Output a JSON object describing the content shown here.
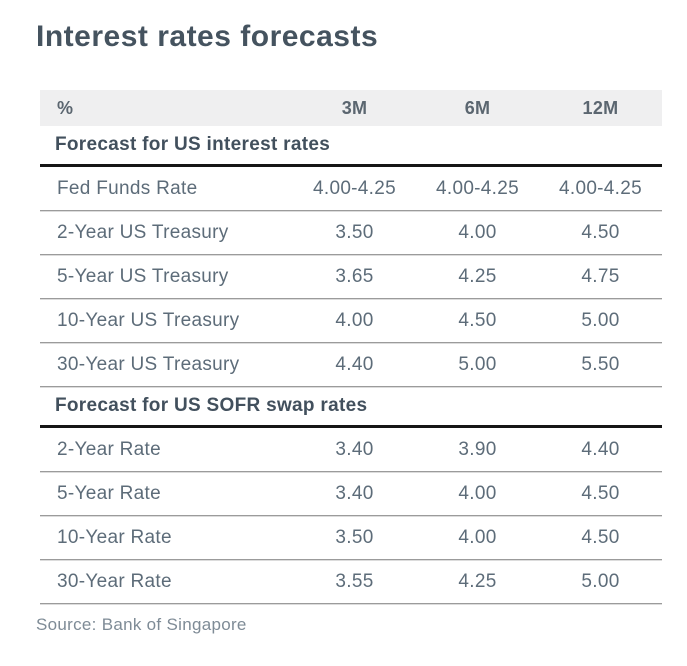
{
  "colors": {
    "title_text": "#45535f",
    "header_band_bg": "#efeff0",
    "header_text": "#5b6670",
    "section_header_text": "#42505d",
    "section_rule": "#161616",
    "row_text": "#5d6c79",
    "row_separator": "#9b9b9b",
    "source_text": "#7e8b96",
    "page_bg": "#ffffff"
  },
  "chart_data": {
    "type": "table",
    "title": "Interest rates forecasts",
    "unit_label": "%",
    "columns": [
      "%",
      "3M",
      "6M",
      "12M"
    ],
    "sections": [
      {
        "header": "Forecast for US interest rates",
        "rows": [
          {
            "label": "Fed Funds Rate",
            "values": [
              "4.00-4.25",
              "4.00-4.25",
              "4.00-4.25"
            ]
          },
          {
            "label": "2-Year US Treasury",
            "values": [
              "3.50",
              "4.00",
              "4.50"
            ]
          },
          {
            "label": "5-Year US Treasury",
            "values": [
              "3.65",
              "4.25",
              "4.75"
            ]
          },
          {
            "label": "10-Year US Treasury",
            "values": [
              "4.00",
              "4.50",
              "5.00"
            ]
          },
          {
            "label": "30-Year US Treasury",
            "values": [
              "4.40",
              "5.00",
              "5.50"
            ]
          }
        ]
      },
      {
        "header": "Forecast for US SOFR swap rates",
        "rows": [
          {
            "label": "2-Year Rate",
            "values": [
              "3.40",
              "3.90",
              "4.40"
            ]
          },
          {
            "label": "5-Year Rate",
            "values": [
              "3.40",
              "4.00",
              "4.50"
            ]
          },
          {
            "label": "10-Year Rate",
            "values": [
              "3.50",
              "4.00",
              "4.50"
            ]
          },
          {
            "label": "30-Year Rate",
            "values": [
              "3.55",
              "4.25",
              "5.00"
            ]
          }
        ]
      }
    ],
    "source": "Source: Bank of Singapore"
  }
}
